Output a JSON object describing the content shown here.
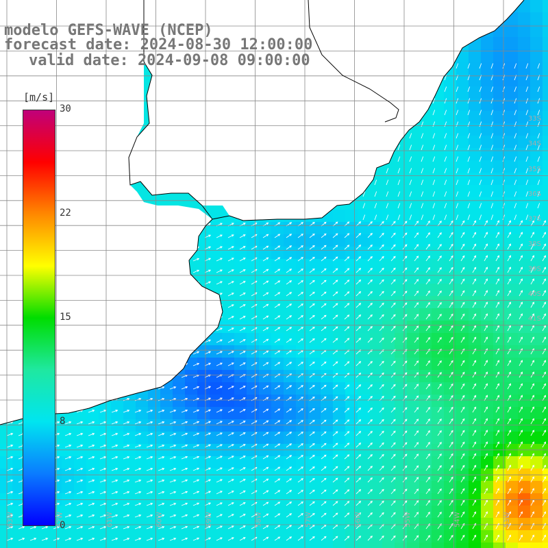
{
  "title": {
    "line1": "modelo GEFS-WAVE (NCEP)",
    "line2": "forecast date: 2024-08-30 12:00:00",
    "line3": "valid date: 2024-09-08 09:00:00"
  },
  "colorbar": {
    "unit_label": "[m/s]",
    "ticks": [
      "30",
      "22",
      "15",
      "8",
      "0"
    ],
    "tick_values": [
      30,
      22,
      15,
      8,
      0
    ],
    "min": 0,
    "max": 30,
    "colors": [
      "#0000ff",
      "#0a7cff",
      "#00e5f0",
      "#1fe8a0",
      "#00dd00",
      "#ffff00",
      "#ff8800",
      "#ff0000",
      "#c0007a"
    ]
  },
  "map": {
    "lat_labels": [
      "33S",
      "34S",
      "35S",
      "36S",
      "37S",
      "38S",
      "39S",
      "40S",
      "41S"
    ],
    "lon_labels": [
      "63W",
      "62W",
      "61W",
      "60W",
      "59W",
      "58W",
      "57W",
      "56W",
      "55W",
      "54W",
      "53W"
    ],
    "lat_range": [
      -41.5,
      -30.5
    ],
    "lon_range": [
      -64,
      -53
    ]
  },
  "colors": {
    "title": "#777777",
    "land": "#ffffff",
    "grid": "#888888",
    "coast": "#000000",
    "arrow": "#ffffff"
  }
}
